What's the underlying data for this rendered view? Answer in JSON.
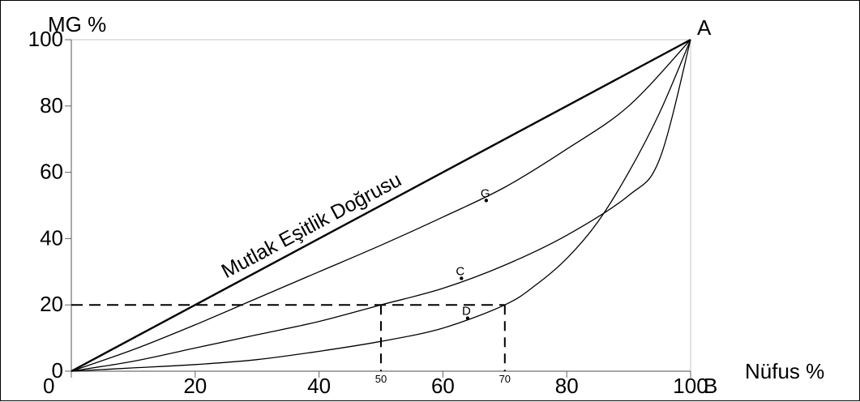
{
  "chart_data": {
    "type": "line",
    "title": "",
    "ylabel": "MG %",
    "xlabel": "Nüfus %",
    "xlim": [
      0,
      100
    ],
    "ylim": [
      0,
      100
    ],
    "grid": false,
    "x_ticks": [
      {
        "value": 0,
        "label": "0"
      },
      {
        "value": 20,
        "label": "20"
      },
      {
        "value": 40,
        "label": "40"
      },
      {
        "value": 60,
        "label": "60"
      },
      {
        "value": 80,
        "label": "80"
      },
      {
        "value": 100,
        "label": "100"
      }
    ],
    "x_small_ticks": [
      {
        "value": 50,
        "label": "50"
      },
      {
        "value": 70,
        "label": "70"
      }
    ],
    "y_ticks": [
      {
        "value": 0,
        "label": "0"
      },
      {
        "value": 20,
        "label": "20"
      },
      {
        "value": 40,
        "label": "40"
      },
      {
        "value": 60,
        "label": "60"
      },
      {
        "value": 80,
        "label": "80"
      },
      {
        "value": 100,
        "label": "100"
      }
    ],
    "equality_line": {
      "label": "Mutlak Eşitlik Doğrusu",
      "x": [
        0,
        100
      ],
      "y": [
        0,
        100
      ]
    },
    "series": [
      {
        "name": "G",
        "x": [
          0,
          10,
          20,
          30,
          40,
          50,
          60,
          70,
          80,
          90,
          100
        ],
        "y": [
          0,
          6.5,
          14,
          22,
          30,
          38,
          46.5,
          55.5,
          67,
          80,
          100
        ]
      },
      {
        "name": "C",
        "x": [
          0,
          10,
          20,
          30,
          40,
          50,
          60,
          70,
          80,
          90,
          95,
          100
        ],
        "y": [
          0,
          3,
          7,
          11,
          15,
          20,
          25,
          32,
          41,
          53,
          64,
          100
        ]
      },
      {
        "name": "",
        "x": [
          0,
          10,
          20,
          30,
          40,
          50,
          60,
          70,
          75,
          80,
          85,
          90,
          95,
          100
        ],
        "y": [
          0,
          1,
          2,
          3.5,
          6,
          9,
          13,
          20,
          26,
          34,
          45,
          60,
          78,
          100
        ]
      }
    ],
    "point_markers": [
      {
        "label": "G",
        "x": 67,
        "y": 51.5
      },
      {
        "label": "C",
        "x": 63,
        "y": 28
      },
      {
        "label": "D",
        "x": 64,
        "y": 16
      }
    ],
    "reference_lines": {
      "y_value": 20,
      "x_values": [
        50,
        70
      ]
    },
    "corner_labels": [
      {
        "label": "A",
        "x": 100,
        "y": 100
      },
      {
        "label": "B",
        "x": 100,
        "y": 0
      }
    ]
  }
}
